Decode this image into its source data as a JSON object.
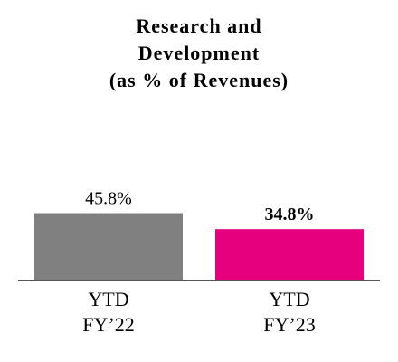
{
  "chart_data": {
    "type": "bar",
    "title_lines": [
      "Research and",
      "Development",
      "(as % of Revenues)"
    ],
    "categories": [
      {
        "lines": [
          "YTD",
          "FY’22"
        ]
      },
      {
        "lines": [
          "YTD",
          "FY’23"
        ]
      }
    ],
    "values": [
      45.8,
      34.8
    ],
    "data_labels": [
      "45.8%",
      "34.8%"
    ],
    "bar_colors": [
      "#808080",
      "#e6007e"
    ],
    "label_bold": [
      false,
      true
    ],
    "axis_color": "#555555",
    "ylim": [
      0,
      100
    ],
    "grid": false
  }
}
